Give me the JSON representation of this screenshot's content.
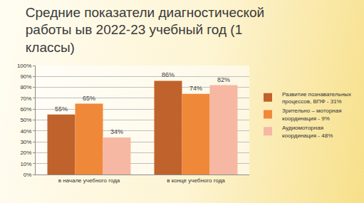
{
  "chart_data": {
    "type": "bar",
    "title": "Средние показатели диагностической работы ыв 2022-23 учебный год (1 классы)",
    "categories": [
      "в начале учебного года",
      "в конце учебного года"
    ],
    "series": [
      {
        "name": "Развитие познавательных процессов, ВПФ - 31%",
        "color": "#c0622b",
        "values": [
          55,
          86
        ],
        "value_labels": [
          "55%",
          "86%"
        ]
      },
      {
        "name": "Зрительно – моторная координация - 9%",
        "color": "#f0883a",
        "values": [
          65,
          74
        ],
        "value_labels": [
          "65%",
          "74%"
        ]
      },
      {
        "name": "Аудиомоторная координация - 48%",
        "color": "#f6b8a2",
        "values": [
          34,
          82
        ],
        "value_labels": [
          "34%",
          "82%"
        ]
      }
    ],
    "ylim": [
      0,
      100
    ],
    "yticks": [
      {
        "value": 0,
        "label": "0%"
      },
      {
        "value": 10,
        "label": "10%"
      },
      {
        "value": 20,
        "label": "20%"
      },
      {
        "value": 30,
        "label": "30%"
      },
      {
        "value": 40,
        "label": "40%"
      },
      {
        "value": 50,
        "label": "50%"
      },
      {
        "value": 60,
        "label": "60%"
      },
      {
        "value": 70,
        "label": "70%"
      },
      {
        "value": 80,
        "label": "80%"
      },
      {
        "value": 90,
        "label": "90%"
      },
      {
        "value": 100,
        "label": "100%"
      }
    ],
    "grid": true,
    "legend": "right",
    "data_labels": true
  }
}
